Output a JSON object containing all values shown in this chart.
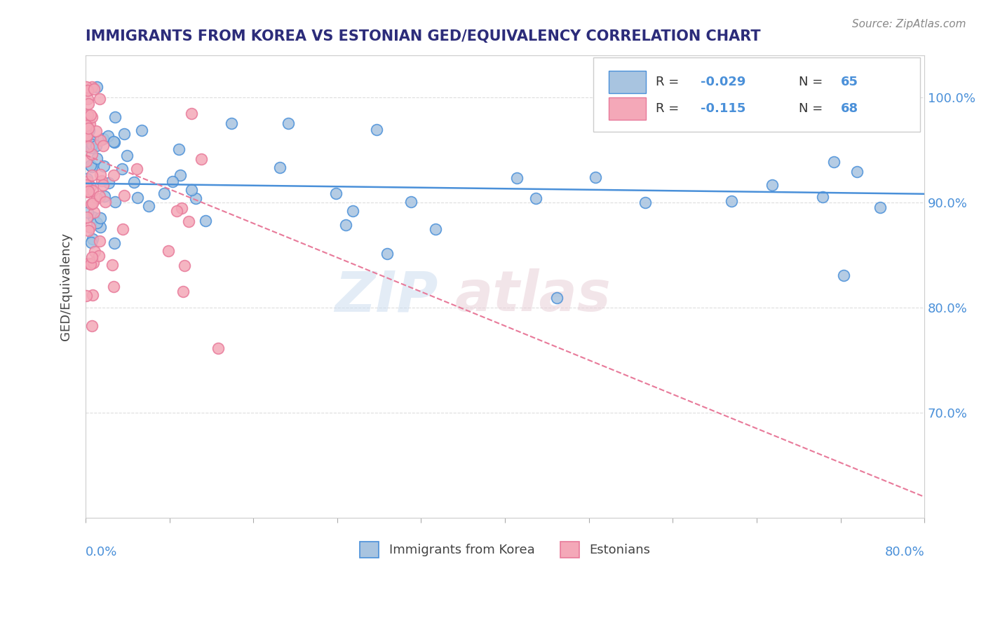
{
  "title": "IMMIGRANTS FROM KOREA VS ESTONIAN GED/EQUIVALENCY CORRELATION CHART",
  "source": "Source: ZipAtlas.com",
  "ylabel": "GED/Equivalency",
  "ytick_labels": [
    "70.0%",
    "80.0%",
    "90.0%",
    "100.0%"
  ],
  "ytick_values": [
    0.7,
    0.8,
    0.9,
    1.0
  ],
  "xlim": [
    0.0,
    0.8
  ],
  "ylim": [
    0.6,
    1.04
  ],
  "legend_r1": "R = -0.029",
  "legend_n1": "N = 65",
  "legend_r2": "R = -0.115",
  "legend_n2": "N = 68",
  "blue_color": "#a8c4e0",
  "pink_color": "#f4a8b8",
  "blue_line_color": "#4a90d9",
  "pink_line_color": "#e87a9a",
  "title_color": "#2c2c7a",
  "source_color": "#888888",
  "blue_trend": [
    0.918,
    0.908
  ],
  "pink_trend": [
    0.945,
    0.62
  ]
}
